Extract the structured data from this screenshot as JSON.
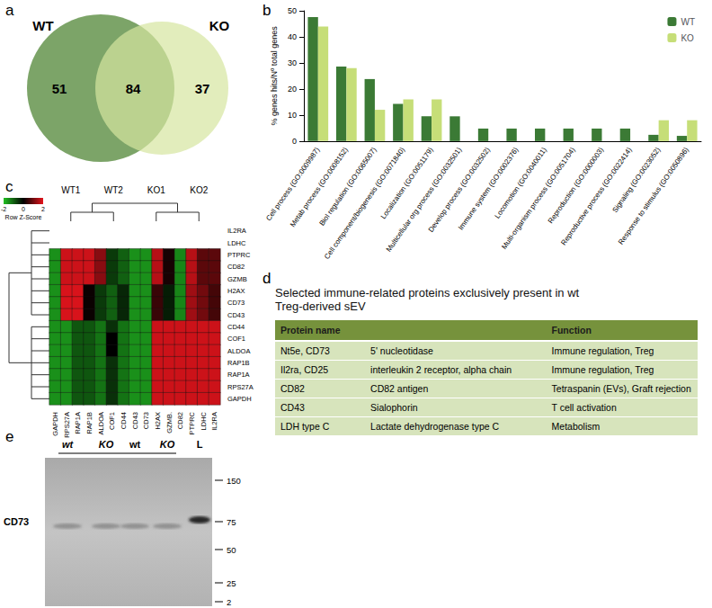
{
  "panel_labels": [
    "a",
    "b",
    "c",
    "d",
    "e"
  ],
  "venn": {
    "sets": [
      {
        "name": "WT",
        "only": 51,
        "color": "#6e9a58"
      },
      {
        "name": "KO",
        "only": 37,
        "color": "#d5e6a0"
      }
    ],
    "shared": 84
  },
  "chart_data": [
    {
      "type": "bar",
      "ylabel": "% genes hits/Nº total genes",
      "categories": [
        "Cell process (GO:0009987)",
        "Metab process (GO:0008152)",
        "Biol regulation (GO:0065007)",
        "Cell component/biogenesis (GO:0071840)",
        "Localization (GO:0051179)",
        "Multicellular org process (GO:0032501)",
        "Develop process (GO:0032502)",
        "Immune system (GO:0002376)",
        "Locomotion (GO:0040011)",
        "Multi-organism process (GO:0051704)",
        "Reproduction (GO:0000003)",
        "Reproductive process (GO:0022414)",
        "Signaling (GO:0023052)",
        "Response to stimulus (GO:0050896)"
      ],
      "series": [
        {
          "name": "WT",
          "color": "#3b7a35",
          "values": [
            47.6,
            28.6,
            23.8,
            14.3,
            9.5,
            9.5,
            4.8,
            4.8,
            4.8,
            4.8,
            4.8,
            4.8,
            2.4,
            2.0
          ]
        },
        {
          "name": "KO",
          "color": "#c6de78",
          "values": [
            44,
            28,
            12,
            16,
            16,
            0,
            0,
            0,
            0,
            0,
            0,
            0,
            8,
            8
          ]
        }
      ],
      "ylim": [
        0,
        50
      ],
      "yticks": [
        0,
        10,
        20,
        30,
        40,
        50
      ],
      "grid": false,
      "legend": "top-right"
    },
    {
      "type": "heatmap",
      "column_tree": [
        "WT1",
        "WT2",
        "KO1",
        "KO2"
      ],
      "row_groups": [
        [
          "IL2RA",
          "LDHC",
          "PTPRC",
          "CD82",
          "GZMB",
          "H2AX",
          "CD73",
          "CD43"
        ],
        [
          "CD44",
          "COF1",
          "ALDOA",
          "RAP1B",
          "RAP1A",
          "RPS27A",
          "GAPDH"
        ]
      ],
      "columns": [
        "GAPDH",
        "RPS27A",
        "RAP1A",
        "RAP1B",
        "ALDOA",
        "COF1",
        "CD44",
        "CD43",
        "CD73",
        "H2AX",
        "GZMB.",
        "CD82",
        "PTPRC",
        "LDHC",
        "IL2RA"
      ],
      "cells": [
        [
          null,
          null,
          null,
          null,
          null,
          null,
          null,
          null,
          null,
          null,
          null,
          null,
          null,
          null,
          null
        ],
        [
          null,
          null,
          null,
          null,
          null,
          null,
          null,
          null,
          null,
          null,
          null,
          null,
          null,
          null,
          null
        ],
        [
          -1.5,
          1.8,
          1.8,
          1.8,
          1.2,
          -0.6,
          -1.0,
          -1.5,
          -1.5,
          1.6,
          0.2,
          -1.4,
          1.6,
          0.8,
          0.8
        ],
        [
          -1.5,
          1.8,
          1.8,
          1.8,
          1.2,
          -0.6,
          -1.0,
          -1.5,
          -1.5,
          1.6,
          0.2,
          -1.4,
          1.6,
          0.8,
          0.8
        ],
        [
          -1.5,
          1.8,
          1.8,
          1.8,
          1.2,
          -0.6,
          -1.0,
          -1.5,
          -1.5,
          1.6,
          0.2,
          -1.4,
          1.6,
          0.8,
          0.8
        ],
        [
          -1.5,
          1.9,
          1.9,
          0.1,
          -0.6,
          -1.0,
          -0.4,
          -1.5,
          -1.5,
          0.5,
          -0.3,
          -1.4,
          1.4,
          1.0,
          0.6
        ],
        [
          -1.5,
          1.9,
          1.9,
          0.1,
          -0.6,
          -1.0,
          -0.4,
          -1.5,
          -1.5,
          0.5,
          -0.3,
          -1.4,
          1.4,
          1.0,
          0.6
        ],
        [
          -1.5,
          1.9,
          1.9,
          0.1,
          -0.6,
          -1.0,
          -0.4,
          -1.5,
          -1.5,
          0.5,
          -0.3,
          -1.4,
          1.4,
          1.0,
          0.6
        ],
        [
          -1.5,
          -1.5,
          -0.9,
          -0.9,
          -1.2,
          -0.5,
          -1.2,
          -1.5,
          -1.5,
          1.8,
          1.8,
          1.8,
          1.8,
          1.8,
          1.8
        ],
        [
          -1.5,
          -1.5,
          -0.9,
          -0.9,
          -1.2,
          0.0,
          -1.2,
          -1.5,
          -1.5,
          1.8,
          1.8,
          1.8,
          1.8,
          1.8,
          1.8
        ],
        [
          -1.5,
          -1.5,
          -0.9,
          -0.9,
          -1.2,
          0.0,
          -1.2,
          -1.5,
          -1.5,
          1.8,
          1.8,
          1.8,
          1.8,
          1.8,
          1.8
        ],
        [
          -1.5,
          -1.5,
          -0.9,
          -0.9,
          -1.2,
          -0.5,
          -1.2,
          -1.5,
          -1.5,
          1.8,
          1.8,
          1.8,
          1.8,
          1.8,
          1.8
        ],
        [
          -1.5,
          -1.5,
          -0.9,
          -0.9,
          -1.2,
          -0.5,
          -1.2,
          -1.5,
          -1.5,
          1.8,
          1.8,
          1.8,
          1.8,
          1.8,
          1.8
        ],
        [
          -1.5,
          -1.5,
          -0.9,
          -0.9,
          -1.2,
          -0.5,
          -1.2,
          -1.5,
          -1.5,
          1.8,
          1.8,
          1.8,
          1.8,
          1.8,
          1.8
        ],
        [
          -1.5,
          -1.5,
          -0.9,
          -0.9,
          -1.2,
          -0.5,
          -1.2,
          -1.5,
          -1.5,
          1.8,
          1.8,
          1.8,
          1.8,
          1.8,
          1.8
        ]
      ],
      "colorbar": {
        "label": "Row Z-Score",
        "range": [
          -2,
          2
        ],
        "ticks": [
          -2,
          0,
          2
        ],
        "colors": [
          "#22c022",
          "#000000",
          "#e3141c"
        ]
      }
    }
  ],
  "table": {
    "title": "Selected immune-related proteins exclusively present in wt Treg-derived sEV",
    "columns": [
      "Protein name",
      null,
      "Function"
    ],
    "rows": [
      [
        "Nt5e, CD73",
        "5' nucleotidase",
        "Immune regulation, Treg"
      ],
      [
        "Il2ra, CD25",
        "interleukin 2 receptor, alpha chain",
        "Immune regulation, Treg"
      ],
      [
        "CD82",
        "CD82 antigen",
        "Tetraspanin (EVs), Graft rejection"
      ],
      [
        "CD43",
        "Sialophorin",
        "T cell activation"
      ],
      [
        "LDH type C",
        "Lactate dehydrogenase type C",
        "Metabolism"
      ]
    ]
  },
  "blot": {
    "protein": "CD73",
    "lanes": [
      "wt",
      "KO",
      "wt",
      "KO",
      "L"
    ],
    "markers": [
      150,
      75,
      50,
      25,
      2
    ]
  }
}
